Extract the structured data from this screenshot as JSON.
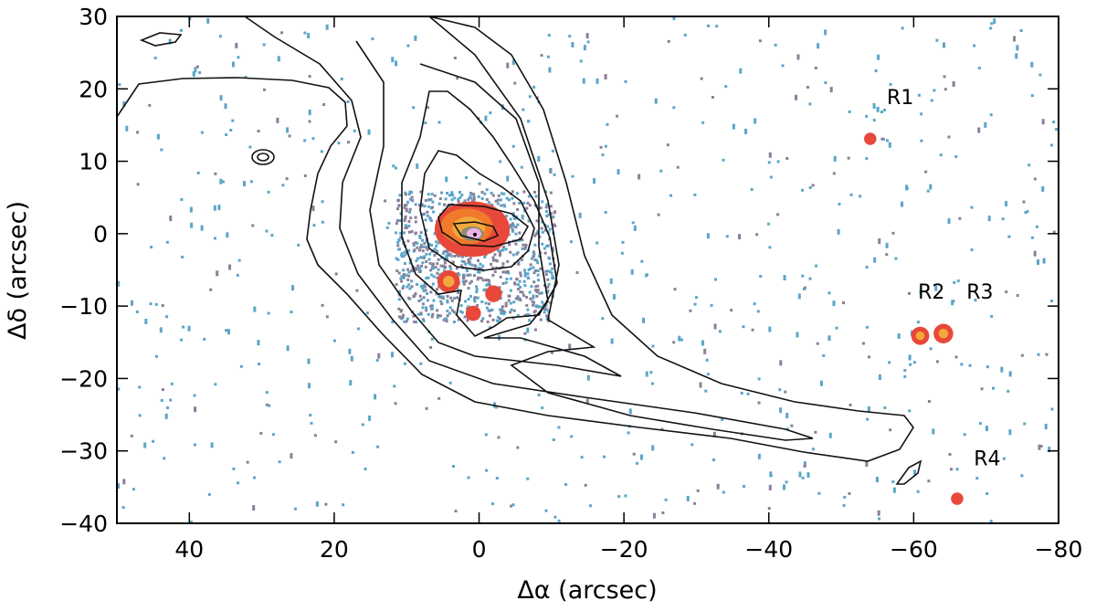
{
  "chart_data": {
    "type": "heatmap",
    "title": "",
    "xlabel": "Δα (arcsec)",
    "ylabel": "Δδ (arcsec)",
    "xlim": [
      50,
      -80
    ],
    "ylim": [
      -40,
      30
    ],
    "xticks": [
      40,
      20,
      0,
      -20,
      -40,
      -60,
      -80
    ],
    "xtick_labels": [
      "40",
      "20",
      "0",
      "−20",
      "−40",
      "−60",
      "−80"
    ],
    "yticks": [
      30,
      20,
      10,
      0,
      -10,
      -20,
      -30,
      -40
    ],
    "ytick_labels": [
      "30",
      "20",
      "10",
      "0",
      "−10",
      "−20",
      "−30",
      "−40"
    ],
    "grid": false,
    "colormap": [
      "#5aa6c8",
      "#8a7f9a",
      "#e8483a",
      "#f07a2a",
      "#f2a93b",
      "#8b8b6e",
      "#e9b3e6"
    ],
    "emission_knots": [
      {
        "x": 0.7,
        "y": 0.0,
        "r": 4.5,
        "peak": 1.0
      },
      {
        "x": 4.2,
        "y": -6.6,
        "r": 1.3,
        "peak": 0.7
      },
      {
        "x": -2.0,
        "y": -8.3,
        "r": 0.9,
        "peak": 0.4
      },
      {
        "x": 0.8,
        "y": -11.0,
        "r": 0.8,
        "peak": 0.5
      },
      {
        "x": -54.0,
        "y": 13.1,
        "r": 0.6,
        "peak": 0.4
      },
      {
        "x": -60.9,
        "y": -14.1,
        "r": 1.0,
        "peak": 0.7
      },
      {
        "x": -64.1,
        "y": -13.8,
        "r": 1.1,
        "peak": 0.7
      },
      {
        "x": -66.0,
        "y": -36.6,
        "r": 0.6,
        "peak": 0.4
      }
    ],
    "annotations": [
      {
        "text": "R1",
        "x": -56.3,
        "y": 17.9
      },
      {
        "text": "R2",
        "x": -60.6,
        "y": -9.0
      },
      {
        "text": "R3",
        "x": -67.3,
        "y": -9.0
      },
      {
        "text": "R4",
        "x": -68.3,
        "y": -32.0
      }
    ]
  }
}
